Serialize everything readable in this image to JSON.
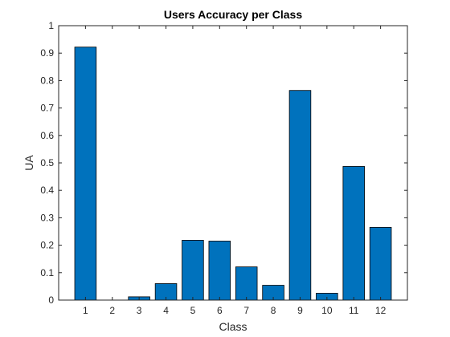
{
  "chart_data": {
    "type": "bar",
    "title": "Users Accuracy per Class",
    "xlabel": "Class",
    "ylabel": "UA",
    "categories": [
      "1",
      "2",
      "3",
      "4",
      "5",
      "6",
      "7",
      "8",
      "9",
      "10",
      "11",
      "12"
    ],
    "values": [
      0.922,
      0.0,
      0.012,
      0.06,
      0.218,
      0.215,
      0.121,
      0.054,
      0.764,
      0.025,
      0.487,
      0.265
    ],
    "ylim": [
      0,
      1
    ],
    "yticks": [
      "0",
      "0.1",
      "0.2",
      "0.3",
      "0.4",
      "0.5",
      "0.6",
      "0.7",
      "0.8",
      "0.9",
      "1"
    ],
    "xlim": [
      0,
      13
    ],
    "grid": false,
    "legend": "none",
    "bar_color": "#0072BD",
    "bar_edge_color": "#000000",
    "axis_color": "#262626"
  }
}
